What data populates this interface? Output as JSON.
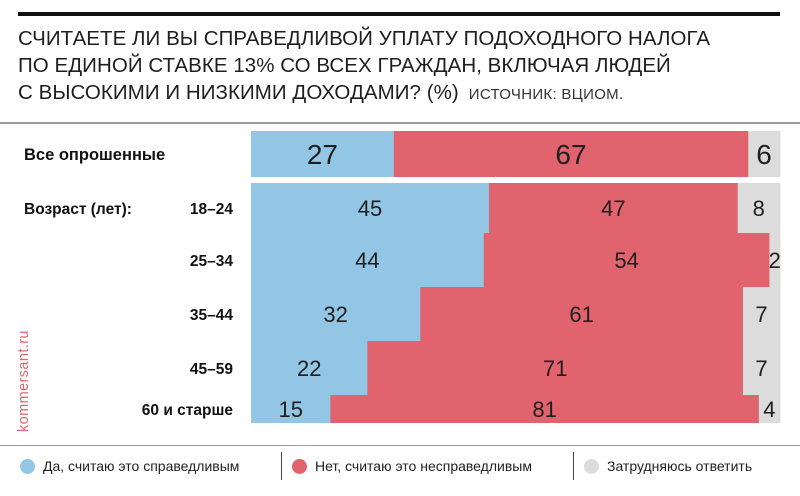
{
  "header": {
    "title_lines": [
      "СЧИТАЕТЕ ЛИ ВЫ СПРАВЕДЛИВОЙ УПЛАТУ ПОДОХОДНОГО НАЛОГА",
      "ПО ЕДИНОЙ СТАВКЕ 13% СО ВСЕХ ГРАЖДАН, ВКЛЮЧАЯ ЛЮДЕЙ",
      "С ВЫСОКИМИ И НИЗКИМИ ДОХОДАМИ? (%)"
    ],
    "source": "ИСТОЧНИК: ВЦИОМ."
  },
  "watermark": "kommersant.ru",
  "colors": {
    "yes": "#93c6e4",
    "no": "#e0636d",
    "hard": "#dcdcdc"
  },
  "chart_data": {
    "type": "bar",
    "stacked": true,
    "orientation": "horizontal",
    "unit": "%",
    "group_label": "Возраст (лет):",
    "categories": [
      "Все опрошенные",
      "18–24",
      "25–34",
      "35–44",
      "45–59",
      "60 и старше"
    ],
    "series": [
      {
        "name": "Да, считаю это справедливым",
        "values": [
          27,
          45,
          44,
          32,
          22,
          15
        ]
      },
      {
        "name": "Нет, считаю это несправедливым",
        "values": [
          67,
          47,
          54,
          61,
          71,
          81
        ]
      },
      {
        "name": "Затрудняюсь ответить",
        "values": [
          6,
          8,
          2,
          7,
          7,
          4
        ]
      }
    ]
  },
  "legend": [
    {
      "label": "Да, считаю это справедливым"
    },
    {
      "label": "Нет, считаю это несправедливым"
    },
    {
      "label": "Затрудняюсь ответить"
    }
  ]
}
